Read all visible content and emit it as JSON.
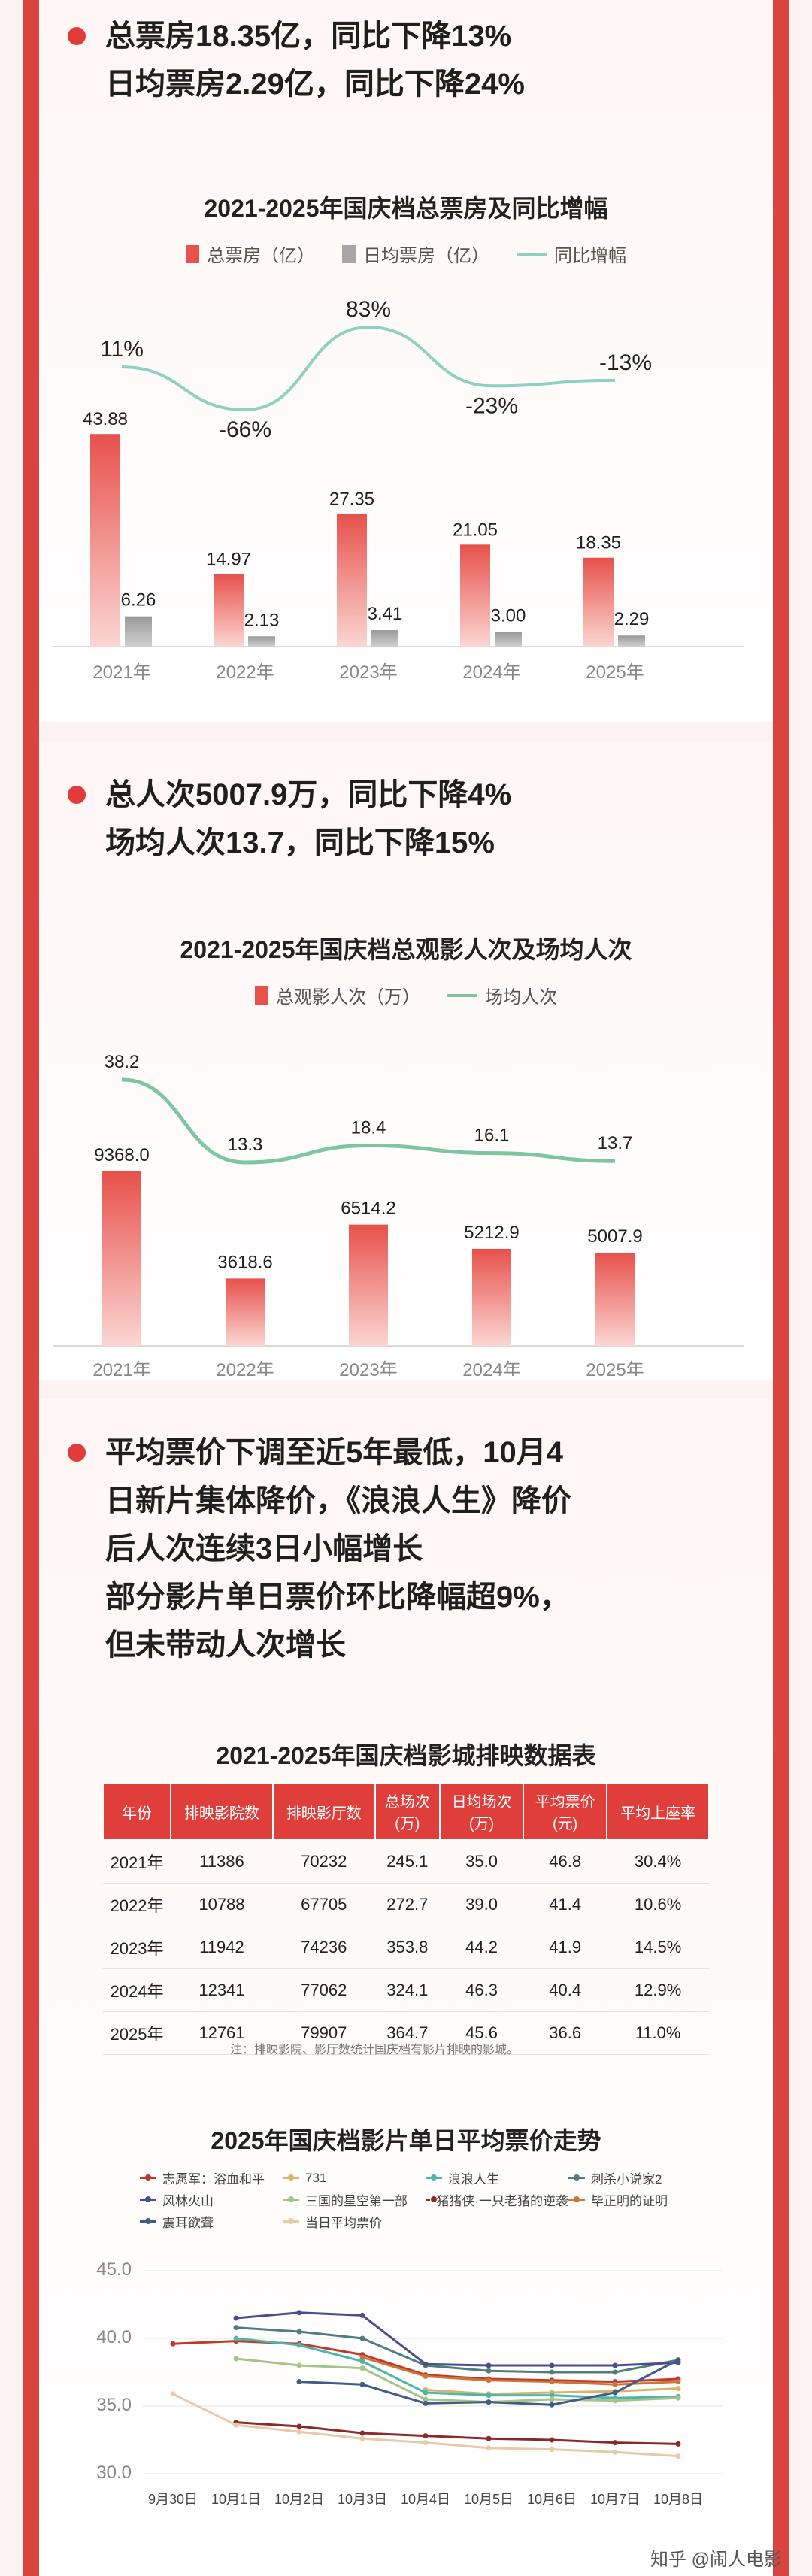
{
  "sections": {
    "box_office": {
      "headline": [
        "总票房18.35亿，同比下降13%",
        "日均票房2.29亿，同比下降24%"
      ]
    },
    "admissions": {
      "headline": [
        "总人次5007.9万，同比下降4%",
        "场均人次13.7，同比下降15%"
      ]
    },
    "price": {
      "headline": [
        "平均票价下调至近5年最低，10月4",
        "日新片集体降价，《浪浪人生》降价",
        "后人次连续3日小幅增长",
        "部分影片单日票价环比降幅超9%，",
        "但未带动人次增长"
      ]
    }
  },
  "colors": {
    "accent": "#e03e3a",
    "bar_red": "#e8514c",
    "bar_gray": "#a6a6a6",
    "line_teal": "#8fd1bf",
    "line_green": "#7fc4a3",
    "background": "#fdf3f2"
  },
  "chart_data": [
    {
      "type": "bar",
      "title": "2021-2025年国庆档总票房及同比增幅",
      "categories": [
        "2021年",
        "2022年",
        "2023年",
        "2024年",
        "2025年"
      ],
      "series": [
        {
          "name": "总票房（亿）",
          "type": "bar",
          "values": [
            43.88,
            14.97,
            27.35,
            21.05,
            18.35
          ],
          "labels": [
            "43.88",
            "14.97",
            "27.35",
            "21.05",
            "18.35"
          ]
        },
        {
          "name": "日均票房（亿）",
          "type": "bar",
          "values": [
            6.26,
            2.13,
            3.41,
            3.0,
            2.29
          ],
          "labels": [
            "6.26",
            "2.13",
            "3.41",
            "3.00",
            "2.29"
          ]
        },
        {
          "name": "同比增幅",
          "type": "line",
          "values": [
            11,
            -66,
            83,
            -23,
            -13
          ],
          "labels": [
            "11%",
            "-66%",
            "83%",
            "-23%",
            "-13%"
          ]
        }
      ],
      "legend": "top"
    },
    {
      "type": "bar",
      "title": "2021-2025年国庆档总观影人次及场均人次",
      "categories": [
        "2021年",
        "2022年",
        "2023年",
        "2024年",
        "2025年"
      ],
      "series": [
        {
          "name": "总观影人次（万）",
          "type": "bar",
          "values": [
            9368.0,
            3618.6,
            6514.2,
            5212.9,
            5007.9
          ],
          "labels": [
            "9368.0",
            "3618.6",
            "6514.2",
            "5212.9",
            "5007.9"
          ]
        },
        {
          "name": "场均人次",
          "type": "line",
          "values": [
            38.2,
            13.3,
            18.4,
            16.1,
            13.7
          ],
          "labels": [
            "38.2",
            "13.3",
            "18.4",
            "16.1",
            "13.7"
          ]
        }
      ],
      "legend": "top"
    },
    {
      "type": "table",
      "title": "2021-2025年国庆档影城排映数据表",
      "columns": [
        "年份",
        "排映影院数",
        "排映影厅数",
        "总场次\n(万)",
        "日均场次\n(万)",
        "平均票价\n(元)",
        "平均上座率"
      ],
      "rows": [
        [
          "2021年",
          "11386",
          "70232",
          "245.1",
          "35.0",
          "46.8",
          "30.4%"
        ],
        [
          "2022年",
          "10788",
          "67705",
          "272.7",
          "39.0",
          "41.4",
          "10.6%"
        ],
        [
          "2023年",
          "11942",
          "74236",
          "353.8",
          "44.2",
          "41.9",
          "14.5%"
        ],
        [
          "2024年",
          "12341",
          "77062",
          "324.1",
          "46.3",
          "40.4",
          "12.9%"
        ],
        [
          "2025年",
          "12761",
          "79907",
          "364.7",
          "45.6",
          "36.6",
          "11.0%"
        ]
      ],
      "note": "注：排映影院、影厅数统计国庆档有影片排映的影城。"
    },
    {
      "type": "line",
      "title": "2025年国庆档影片单日平均票价走势",
      "x": [
        "9月30日",
        "10月1日",
        "10月2日",
        "10月3日",
        "10月4日",
        "10月5日",
        "10月6日",
        "10月7日",
        "10月8日"
      ],
      "ylim": [
        30.0,
        45.0
      ],
      "yticks": [
        "30.0",
        "35.0",
        "40.0",
        "45.0"
      ],
      "series": [
        {
          "name": "志愿军：浴血和平",
          "color": "#c0392b",
          "values": [
            39.6,
            39.8,
            39.6,
            38.8,
            37.3,
            37.0,
            36.9,
            36.8,
            37.0
          ]
        },
        {
          "name": "731",
          "color": "#d6b46c",
          "values": [
            null,
            null,
            null,
            null,
            36.2,
            35.9,
            36.0,
            36.1,
            36.3
          ]
        },
        {
          "name": "浪浪人生",
          "color": "#4db6ac",
          "values": [
            null,
            40.0,
            39.5,
            38.3,
            36.0,
            35.8,
            35.8,
            35.6,
            35.7
          ]
        },
        {
          "name": "刺杀小说家2",
          "color": "#4f7f7a",
          "values": [
            null,
            40.8,
            40.5,
            40.0,
            38.0,
            37.6,
            37.5,
            37.5,
            38.4
          ]
        },
        {
          "name": "风林火山",
          "color": "#4a4f8c",
          "values": [
            null,
            41.5,
            41.9,
            41.7,
            38.1,
            38.0,
            38.0,
            38.0,
            38.2
          ]
        },
        {
          "name": "三国的星空第一部",
          "color": "#a6c48a",
          "values": [
            null,
            38.5,
            38.0,
            37.8,
            35.5,
            35.3,
            35.5,
            35.4,
            35.6
          ]
        },
        {
          "name": "猪猪侠·一只老猪的逆袭",
          "color": "#8b2a2a",
          "values": [
            null,
            33.8,
            33.5,
            33.0,
            32.8,
            32.6,
            32.5,
            32.3,
            32.2
          ]
        },
        {
          "name": "毕正明的证明",
          "color": "#c8783a",
          "values": [
            null,
            null,
            null,
            38.6,
            37.2,
            36.9,
            36.8,
            36.6,
            36.8
          ]
        },
        {
          "name": "震耳欲聋",
          "color": "#3f5d86",
          "values": [
            null,
            null,
            36.8,
            36.6,
            35.2,
            35.3,
            35.1,
            36.0,
            38.4
          ]
        },
        {
          "name": "当日平均票价",
          "color": "#e8c9a8",
          "values": [
            35.9,
            33.6,
            33.1,
            32.6,
            32.3,
            31.9,
            31.8,
            31.6,
            31.3
          ]
        }
      ],
      "legend": "top"
    }
  ],
  "watermark": "知乎 @闹人电影"
}
